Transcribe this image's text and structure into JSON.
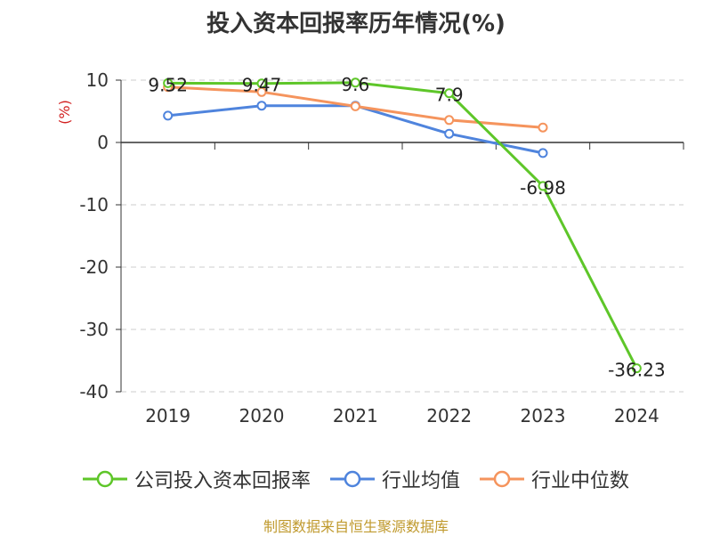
{
  "chart_data": {
    "type": "line",
    "title": "投入资本回报率历年情况(%)",
    "ylabel": "(%)",
    "xlabel": "",
    "categories": [
      "2019",
      "2020",
      "2021",
      "2022",
      "2023",
      "2024"
    ],
    "ylim": [
      -40,
      10
    ],
    "yticks": [
      10,
      0,
      -10,
      -20,
      -30,
      -40
    ],
    "grid": true,
    "legend_position": "bottom",
    "series": [
      {
        "name": "公司投入资本回报率",
        "color": "#5ec629",
        "values": [
          9.52,
          9.47,
          9.6,
          7.9,
          -6.98,
          -36.23
        ],
        "labels": [
          "9.52",
          "9.47",
          "9.6",
          "7.9",
          "-6.98",
          "-36.23"
        ]
      },
      {
        "name": "行业均值",
        "color": "#4f84dd",
        "values": [
          4.3,
          5.9,
          5.9,
          1.4,
          -1.7,
          null
        ]
      },
      {
        "name": "行业中位数",
        "color": "#f5945d",
        "values": [
          8.9,
          8.1,
          5.8,
          3.6,
          2.4,
          null
        ]
      }
    ]
  },
  "footer": {
    "source": "制图数据来自恒生聚源数据库"
  }
}
